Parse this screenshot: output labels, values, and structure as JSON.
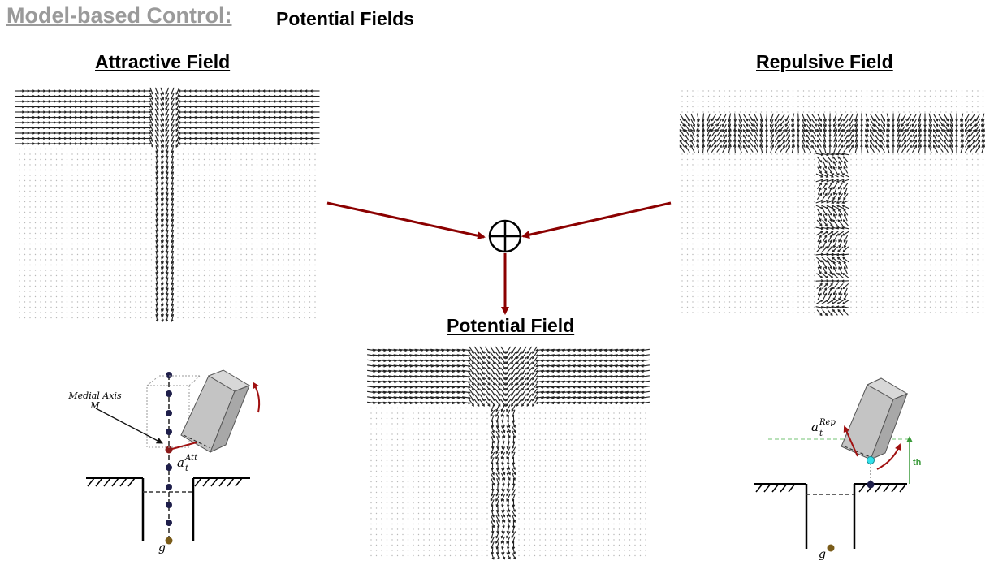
{
  "header": {
    "title": "Model-based Control:",
    "subtitle": "Potential Fields"
  },
  "panels": {
    "attractive_title": "Attractive Field",
    "repulsive_title": "Repulsive Field",
    "potential_title": "Potential Field"
  },
  "annotations_left": {
    "medial_axis": "Medial Axis",
    "medial_axis_symbol": "M",
    "att_label": "a",
    "att_sup": "Att",
    "att_sub": "t",
    "goal": "g"
  },
  "annotations_right": {
    "rep_label": "a",
    "rep_sup": "Rep",
    "rep_sub": "t",
    "threshold": "th",
    "goal": "g"
  },
  "colors": {
    "title_gray": "#9a9a9a",
    "arrow_red": "#8b0000",
    "vector_dark": "#222222",
    "dot_gray": "#b8b8b8",
    "medial_dot": "#1e1e4a",
    "goal_dot": "#7a5c1a",
    "cyan_dot": "#33e0ea",
    "threshold_green": "#3a9a3a",
    "box_gray": "#c4c4c4"
  },
  "icons": {
    "sum_operator": "circle-plus-icon"
  }
}
